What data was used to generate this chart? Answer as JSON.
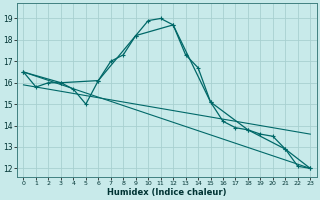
{
  "xlabel": "Humidex (Indice chaleur)",
  "background_color": "#c8eaea",
  "grid_color": "#a8d0d0",
  "line_color": "#006868",
  "xlim": [
    -0.5,
    23.5
  ],
  "ylim": [
    11.6,
    19.7
  ],
  "yticks": [
    12,
    13,
    14,
    15,
    16,
    17,
    18,
    19
  ],
  "xticks": [
    0,
    1,
    2,
    3,
    4,
    5,
    6,
    7,
    8,
    9,
    10,
    11,
    12,
    13,
    14,
    15,
    16,
    17,
    18,
    19,
    20,
    21,
    22,
    23
  ],
  "series_main": {
    "x": [
      0,
      1,
      2,
      3,
      4,
      5,
      6,
      7,
      8,
      9,
      10,
      11,
      12,
      13,
      14,
      15,
      16,
      17,
      18,
      19,
      20,
      21,
      22,
      23
    ],
    "y": [
      16.5,
      15.8,
      16.0,
      16.0,
      15.7,
      15.0,
      16.1,
      17.0,
      17.3,
      18.2,
      18.9,
      19.0,
      18.7,
      17.3,
      16.7,
      15.1,
      14.2,
      13.9,
      13.8,
      13.6,
      13.5,
      12.9,
      12.1,
      12.0
    ]
  },
  "series_sub": {
    "x": [
      0,
      3,
      6,
      9,
      12,
      15,
      18,
      21,
      23
    ],
    "y": [
      16.5,
      16.0,
      16.1,
      18.2,
      18.7,
      15.1,
      13.8,
      12.9,
      12.0
    ]
  },
  "series_line1": {
    "x": [
      0,
      23
    ],
    "y": [
      16.5,
      12.0
    ]
  },
  "series_line2": {
    "x": [
      0,
      23
    ],
    "y": [
      15.9,
      13.6
    ]
  }
}
